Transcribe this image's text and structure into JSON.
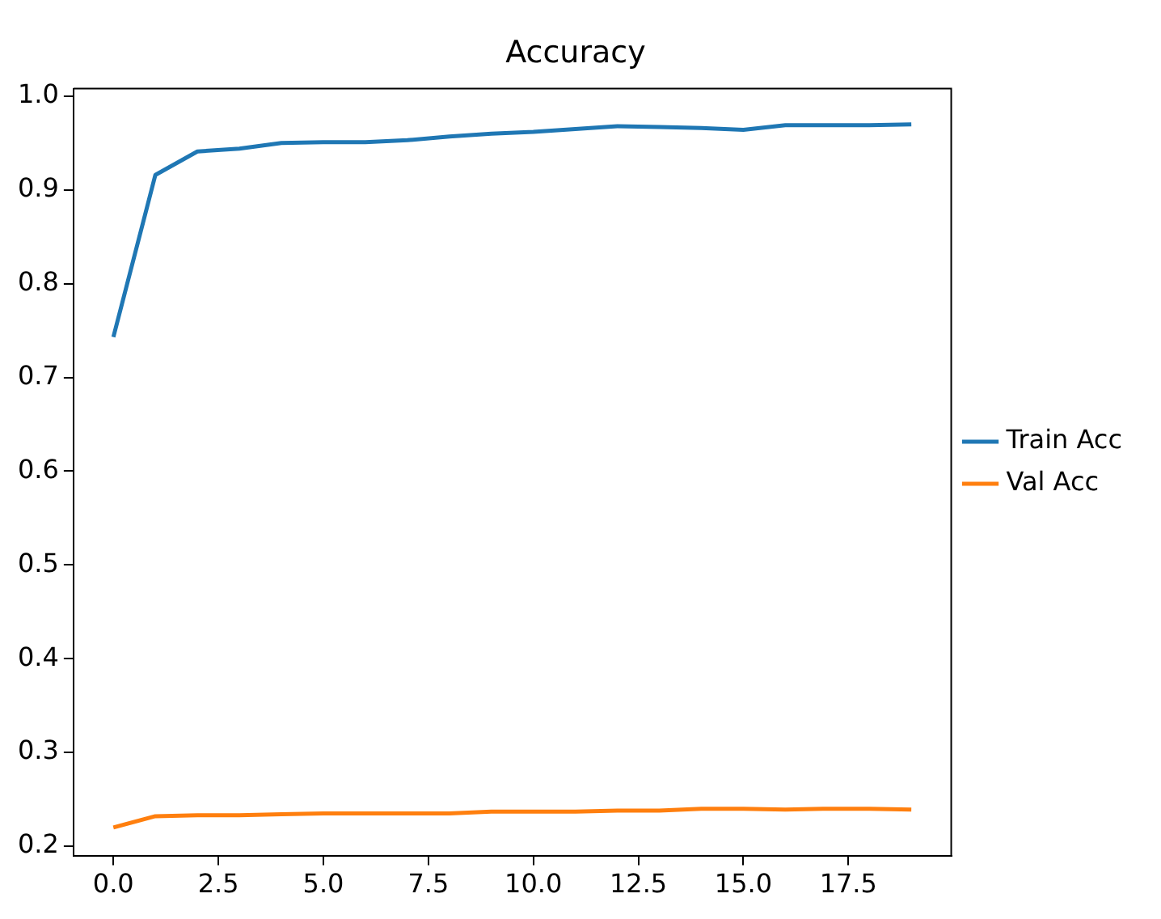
{
  "chart_data": {
    "type": "line",
    "title": "Accuracy",
    "x": [
      0,
      1,
      2,
      3,
      4,
      5,
      6,
      7,
      8,
      9,
      10,
      11,
      12,
      13,
      14,
      15,
      16,
      17,
      18,
      19
    ],
    "series": [
      {
        "name": "Train Acc",
        "color": "#1f77b4",
        "values": [
          0.743,
          0.916,
          0.941,
          0.944,
          0.95,
          0.951,
          0.951,
          0.953,
          0.957,
          0.96,
          0.962,
          0.965,
          0.968,
          0.967,
          0.966,
          0.964,
          0.969,
          0.969,
          0.969,
          0.97
        ]
      },
      {
        "name": "Val Acc",
        "color": "#ff7f0e",
        "values": [
          0.22,
          0.232,
          0.233,
          0.233,
          0.234,
          0.235,
          0.235,
          0.235,
          0.235,
          0.237,
          0.237,
          0.237,
          0.238,
          0.238,
          0.24,
          0.24,
          0.239,
          0.24,
          0.24,
          0.239
        ]
      }
    ],
    "xlim": [
      -0.95,
      19.95
    ],
    "xticks": [
      {
        "value": 0,
        "label": "0.0"
      },
      {
        "value": 2.5,
        "label": "2.5"
      },
      {
        "value": 5,
        "label": "5.0"
      },
      {
        "value": 7.5,
        "label": "7.5"
      },
      {
        "value": 10,
        "label": "10.0"
      },
      {
        "value": 12.5,
        "label": "12.5"
      },
      {
        "value": 15,
        "label": "15.0"
      },
      {
        "value": 17.5,
        "label": "17.5"
      }
    ],
    "ylim": [
      0.19,
      1.008
    ],
    "yticks": [
      {
        "value": 0.2,
        "label": "0.2"
      },
      {
        "value": 0.3,
        "label": "0.3"
      },
      {
        "value": 0.4,
        "label": "0.4"
      },
      {
        "value": 0.5,
        "label": "0.5"
      },
      {
        "value": 0.6,
        "label": "0.6"
      },
      {
        "value": 0.7,
        "label": "0.7"
      },
      {
        "value": 0.8,
        "label": "0.8"
      },
      {
        "value": 0.9,
        "label": "0.9"
      },
      {
        "value": 1.0,
        "label": "1.0"
      }
    ],
    "legend": "right",
    "grid": false,
    "marker": "none",
    "line_style": "solid"
  }
}
